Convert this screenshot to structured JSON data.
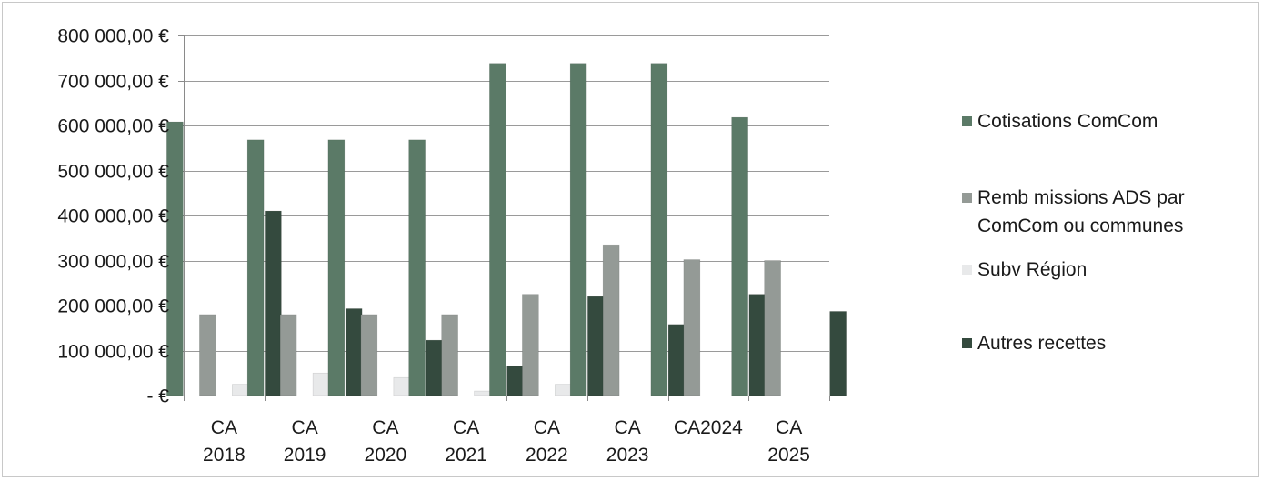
{
  "chart_data": {
    "type": "bar",
    "categories": [
      [
        "CA",
        "2018"
      ],
      [
        "CA",
        "2019"
      ],
      [
        "CA",
        "2020"
      ],
      [
        "CA",
        "2021"
      ],
      [
        "CA",
        "2022"
      ],
      [
        "CA",
        "2023"
      ],
      [
        "CA2024"
      ],
      [
        "CA",
        "2025"
      ]
    ],
    "series": [
      {
        "name": "Cotisations ComCom",
        "color": "#5b7a67",
        "values": [
          608000,
          568000,
          568000,
          568000,
          738000,
          738000,
          738000,
          618000
        ]
      },
      {
        "name": "Remb missions ADS par ComCom ou communes",
        "color": "#949a96",
        "values": [
          180000,
          180000,
          180000,
          180000,
          225000,
          335000,
          302000,
          300000
        ]
      },
      {
        "name": "Subv Région",
        "color": "#e8e9ea",
        "values": [
          25000,
          50000,
          40000,
          10000,
          25000,
          0,
          0,
          0
        ]
      },
      {
        "name": "Autres recettes",
        "color": "#344a3e",
        "values": [
          410000,
          193000,
          123000,
          65000,
          220000,
          158000,
          225000,
          187000
        ]
      }
    ],
    "ylim": [
      0,
      800000
    ],
    "yticks": [
      {
        "value": 0,
        "label": "-   €"
      },
      {
        "value": 100000,
        "label": "100 000,00 €"
      },
      {
        "value": 200000,
        "label": "200 000,00 €"
      },
      {
        "value": 300000,
        "label": "300 000,00 €"
      },
      {
        "value": 400000,
        "label": "400 000,00 €"
      },
      {
        "value": 500000,
        "label": "500 000,00 €"
      },
      {
        "value": 600000,
        "label": "600 000,00 €"
      },
      {
        "value": 700000,
        "label": "700 000,00 €"
      },
      {
        "value": 800000,
        "label": "800 000,00 €"
      }
    ],
    "grid": true,
    "legend_position": "right",
    "xlabel": "",
    "ylabel": "",
    "title": ""
  }
}
